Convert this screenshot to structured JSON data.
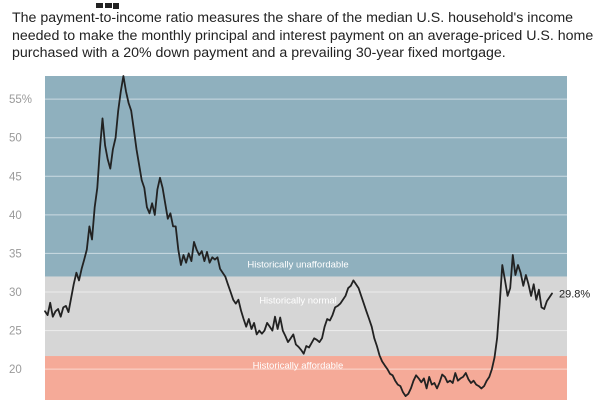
{
  "description": "The payment-to-income ratio measures the share of the median U.S. household's income needed to make the monthly principal and interest payment on an average-priced U.S. home purchased with a 20% down payment and a prevailing 30-year fixed mortgage.",
  "colors": {
    "unaffordable": "#8fb0be",
    "normal": "#d6d6d6",
    "affordable": "#f5aa98",
    "line": "#222222"
  },
  "chart_data": {
    "type": "line",
    "yunit": "%",
    "ylim": [
      16,
      58
    ],
    "yticks": [
      {
        "value": 20,
        "label": "20"
      },
      {
        "value": 25,
        "label": "25"
      },
      {
        "value": 30,
        "label": "30"
      },
      {
        "value": 35,
        "label": "35"
      },
      {
        "value": 40,
        "label": "40"
      },
      {
        "value": 45,
        "label": "45"
      },
      {
        "value": 50,
        "label": "50"
      },
      {
        "value": 55,
        "label": "55%"
      }
    ],
    "grid": true,
    "bands": [
      {
        "label": "Historically unaffordable",
        "from": 32,
        "to": 58,
        "color": "#8fb0be"
      },
      {
        "label": "Historically normal",
        "from": 21.7,
        "to": 32,
        "color": "#d6d6d6"
      },
      {
        "label": "Historically affordable",
        "from": 16,
        "to": 21.7,
        "color": "#f5aa98"
      }
    ],
    "end_label": "29.8%",
    "series": [
      {
        "values": [
          27.5,
          27,
          28.6,
          26.8,
          27.5,
          27.8,
          26.8,
          28,
          28.2,
          27.4,
          29.2,
          31,
          32.5,
          31.5,
          33,
          34.2,
          35.5,
          38.5,
          36.8,
          41,
          43.5,
          48.5,
          52.5,
          49,
          47.2,
          46,
          48.5,
          50,
          53.5,
          56,
          58,
          56,
          54.5,
          53.5,
          51,
          48.5,
          46.5,
          44.5,
          43.5,
          41,
          40.2,
          41.5,
          40,
          43.3,
          44.8,
          43.5,
          41.5,
          39.5,
          40.2,
          38.5,
          38.5,
          35.5,
          33.5,
          34.8,
          33.8,
          35,
          34,
          36.5,
          35.5,
          34.8,
          35.3,
          34,
          35.2,
          33.8,
          34.5,
          34.2,
          34.5,
          33,
          32.5,
          32,
          31,
          30,
          29,
          28.5,
          29,
          27.6,
          26.5,
          25.5,
          26.5,
          25.2,
          26,
          24.5,
          25,
          24.6,
          25,
          26,
          25.5,
          25,
          26.8,
          25.2,
          26.7,
          25,
          24.3,
          23.5,
          24,
          24.5,
          23.2,
          22.9,
          22.5,
          22,
          23,
          22.8,
          23.4,
          24,
          23.8,
          23.5,
          24,
          25.5,
          26.5,
          26.3,
          27,
          28,
          28.2,
          28.5,
          29,
          29.5,
          30.5,
          30.8,
          31.5,
          31,
          30.5,
          29.5,
          28.5,
          27.5,
          26.5,
          25.5,
          24,
          23,
          21.8,
          21,
          20.5,
          20,
          19.4,
          19.2,
          18.5,
          18,
          17.8,
          17,
          16.5,
          16.8,
          17.5,
          18.5,
          19.2,
          18.8,
          18.3,
          18.8,
          17.5,
          19,
          18,
          18.2,
          17.5,
          18.3,
          19.3,
          19,
          18.3,
          18.5,
          18.2,
          19.5,
          18.5,
          18.8,
          19,
          19.5,
          18.7,
          18.2,
          18.5,
          18,
          17.8,
          17.5,
          17.8,
          18.5,
          19,
          20,
          21.5,
          24,
          28.5,
          33.5,
          31.5,
          29.5,
          30.5,
          34.8,
          32.2,
          33.5,
          32.5,
          30.8,
          32.2,
          31,
          29.5,
          31,
          29,
          30.3,
          28,
          27.8,
          28.8,
          29.3,
          29.8
        ]
      }
    ]
  }
}
